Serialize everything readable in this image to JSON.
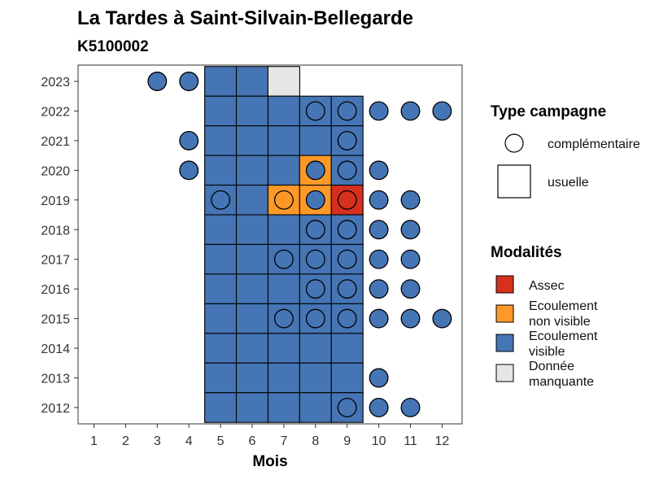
{
  "chart_data": {
    "type": "heatmap",
    "title": "La Tardes à Saint-Silvain-Bellegarde",
    "subtitle": "K5100002",
    "xlabel": "Mois",
    "ylabel": "",
    "x_categories": [
      "1",
      "2",
      "3",
      "4",
      "5",
      "6",
      "7",
      "8",
      "9",
      "10",
      "11",
      "12"
    ],
    "y_categories": [
      "2012",
      "2013",
      "2014",
      "2015",
      "2016",
      "2017",
      "2018",
      "2019",
      "2020",
      "2021",
      "2022",
      "2023"
    ],
    "legend": {
      "campagne_title": "Type campagne",
      "campagne_items": [
        {
          "label": "complémentaire",
          "shape": "circle"
        },
        {
          "label": "usuelle",
          "shape": "square"
        }
      ],
      "modalites_title": "Modalités",
      "modalites_items": [
        {
          "lines": [
            "Assec"
          ],
          "color": "#d7301f"
        },
        {
          "lines": [
            "Ecoulement",
            "non visible"
          ],
          "color": "#fe9929"
        },
        {
          "lines": [
            "Ecoulement",
            "visible"
          ],
          "color": "#4575b4"
        },
        {
          "lines": [
            "Donnée",
            "manquante"
          ],
          "color": "#e6e6e6"
        }
      ]
    },
    "usuelle": [
      {
        "year": "2023",
        "month": 5,
        "modalite": "Ecoulement visible"
      },
      {
        "year": "2023",
        "month": 6,
        "modalite": "Ecoulement visible"
      },
      {
        "year": "2023",
        "month": 7,
        "modalite": "Donnée manquante"
      },
      {
        "year": "2022",
        "month": 5,
        "modalite": "Ecoulement visible"
      },
      {
        "year": "2022",
        "month": 6,
        "modalite": "Ecoulement visible"
      },
      {
        "year": "2022",
        "month": 7,
        "modalite": "Ecoulement visible"
      },
      {
        "year": "2022",
        "month": 8,
        "modalite": "Ecoulement visible"
      },
      {
        "year": "2022",
        "month": 9,
        "modalite": "Ecoulement visible"
      },
      {
        "year": "2021",
        "month": 5,
        "modalite": "Ecoulement visible"
      },
      {
        "year": "2021",
        "month": 6,
        "modalite": "Ecoulement visible"
      },
      {
        "year": "2021",
        "month": 7,
        "modalite": "Ecoulement visible"
      },
      {
        "year": "2021",
        "month": 8,
        "modalite": "Ecoulement visible"
      },
      {
        "year": "2021",
        "month": 9,
        "modalite": "Ecoulement visible"
      },
      {
        "year": "2020",
        "month": 5,
        "modalite": "Ecoulement visible"
      },
      {
        "year": "2020",
        "month": 6,
        "modalite": "Ecoulement visible"
      },
      {
        "year": "2020",
        "month": 7,
        "modalite": "Ecoulement visible"
      },
      {
        "year": "2020",
        "month": 8,
        "modalite": "Ecoulement non visible"
      },
      {
        "year": "2020",
        "month": 9,
        "modalite": "Ecoulement visible"
      },
      {
        "year": "2019",
        "month": 5,
        "modalite": "Ecoulement visible"
      },
      {
        "year": "2019",
        "month": 6,
        "modalite": "Ecoulement visible"
      },
      {
        "year": "2019",
        "month": 7,
        "modalite": "Ecoulement non visible"
      },
      {
        "year": "2019",
        "month": 8,
        "modalite": "Ecoulement non visible"
      },
      {
        "year": "2019",
        "month": 9,
        "modalite": "Assec"
      },
      {
        "year": "2018",
        "month": 5,
        "modalite": "Ecoulement visible"
      },
      {
        "year": "2018",
        "month": 6,
        "modalite": "Ecoulement visible"
      },
      {
        "year": "2018",
        "month": 7,
        "modalite": "Ecoulement visible"
      },
      {
        "year": "2018",
        "month": 8,
        "modalite": "Ecoulement visible"
      },
      {
        "year": "2018",
        "month": 9,
        "modalite": "Ecoulement visible"
      },
      {
        "year": "2017",
        "month": 5,
        "modalite": "Ecoulement visible"
      },
      {
        "year": "2017",
        "month": 6,
        "modalite": "Ecoulement visible"
      },
      {
        "year": "2017",
        "month": 7,
        "modalite": "Ecoulement visible"
      },
      {
        "year": "2017",
        "month": 8,
        "modalite": "Ecoulement visible"
      },
      {
        "year": "2017",
        "month": 9,
        "modalite": "Ecoulement visible"
      },
      {
        "year": "2016",
        "month": 5,
        "modalite": "Ecoulement visible"
      },
      {
        "year": "2016",
        "month": 6,
        "modalite": "Ecoulement visible"
      },
      {
        "year": "2016",
        "month": 7,
        "modalite": "Ecoulement visible"
      },
      {
        "year": "2016",
        "month": 8,
        "modalite": "Ecoulement visible"
      },
      {
        "year": "2016",
        "month": 9,
        "modalite": "Ecoulement visible"
      },
      {
        "year": "2015",
        "month": 5,
        "modalite": "Ecoulement visible"
      },
      {
        "year": "2015",
        "month": 6,
        "modalite": "Ecoulement visible"
      },
      {
        "year": "2015",
        "month": 7,
        "modalite": "Ecoulement visible"
      },
      {
        "year": "2015",
        "month": 8,
        "modalite": "Ecoulement visible"
      },
      {
        "year": "2015",
        "month": 9,
        "modalite": "Ecoulement visible"
      },
      {
        "year": "2014",
        "month": 5,
        "modalite": "Ecoulement visible"
      },
      {
        "year": "2014",
        "month": 6,
        "modalite": "Ecoulement visible"
      },
      {
        "year": "2014",
        "month": 7,
        "modalite": "Ecoulement visible"
      },
      {
        "year": "2014",
        "month": 8,
        "modalite": "Ecoulement visible"
      },
      {
        "year": "2014",
        "month": 9,
        "modalite": "Ecoulement visible"
      },
      {
        "year": "2013",
        "month": 5,
        "modalite": "Ecoulement visible"
      },
      {
        "year": "2013",
        "month": 6,
        "modalite": "Ecoulement visible"
      },
      {
        "year": "2013",
        "month": 7,
        "modalite": "Ecoulement visible"
      },
      {
        "year": "2013",
        "month": 8,
        "modalite": "Ecoulement visible"
      },
      {
        "year": "2013",
        "month": 9,
        "modalite": "Ecoulement visible"
      },
      {
        "year": "2012",
        "month": 5,
        "modalite": "Ecoulement visible"
      },
      {
        "year": "2012",
        "month": 6,
        "modalite": "Ecoulement visible"
      },
      {
        "year": "2012",
        "month": 7,
        "modalite": "Ecoulement visible"
      },
      {
        "year": "2012",
        "month": 8,
        "modalite": "Ecoulement visible"
      },
      {
        "year": "2012",
        "month": 9,
        "modalite": "Ecoulement visible"
      }
    ],
    "complementaire": [
      {
        "year": "2023",
        "month": 3,
        "modalite": "Ecoulement visible"
      },
      {
        "year": "2023",
        "month": 4,
        "modalite": "Ecoulement visible"
      },
      {
        "year": "2022",
        "month": 8,
        "modalite": "Ecoulement visible"
      },
      {
        "year": "2022",
        "month": 9,
        "modalite": "Ecoulement visible"
      },
      {
        "year": "2022",
        "month": 10,
        "modalite": "Ecoulement visible"
      },
      {
        "year": "2022",
        "month": 11,
        "modalite": "Ecoulement visible"
      },
      {
        "year": "2022",
        "month": 12,
        "modalite": "Ecoulement visible"
      },
      {
        "year": "2021",
        "month": 4,
        "modalite": "Ecoulement visible"
      },
      {
        "year": "2021",
        "month": 9,
        "modalite": "Ecoulement visible"
      },
      {
        "year": "2020",
        "month": 4,
        "modalite": "Ecoulement visible"
      },
      {
        "year": "2020",
        "month": 8,
        "modalite": "Ecoulement visible"
      },
      {
        "year": "2020",
        "month": 9,
        "modalite": "Ecoulement visible"
      },
      {
        "year": "2020",
        "month": 10,
        "modalite": "Ecoulement visible"
      },
      {
        "year": "2019",
        "month": 5,
        "modalite": "Ecoulement visible"
      },
      {
        "year": "2019",
        "month": 7,
        "modalite": "Ecoulement non visible"
      },
      {
        "year": "2019",
        "month": 8,
        "modalite": "Ecoulement visible"
      },
      {
        "year": "2019",
        "month": 9,
        "modalite": "Assec"
      },
      {
        "year": "2019",
        "month": 10,
        "modalite": "Ecoulement visible"
      },
      {
        "year": "2019",
        "month": 11,
        "modalite": "Ecoulement visible"
      },
      {
        "year": "2018",
        "month": 8,
        "modalite": "Ecoulement visible"
      },
      {
        "year": "2018",
        "month": 9,
        "modalite": "Ecoulement visible"
      },
      {
        "year": "2018",
        "month": 10,
        "modalite": "Ecoulement visible"
      },
      {
        "year": "2018",
        "month": 11,
        "modalite": "Ecoulement visible"
      },
      {
        "year": "2017",
        "month": 7,
        "modalite": "Ecoulement visible"
      },
      {
        "year": "2017",
        "month": 8,
        "modalite": "Ecoulement visible"
      },
      {
        "year": "2017",
        "month": 9,
        "modalite": "Ecoulement visible"
      },
      {
        "year": "2017",
        "month": 10,
        "modalite": "Ecoulement visible"
      },
      {
        "year": "2017",
        "month": 11,
        "modalite": "Ecoulement visible"
      },
      {
        "year": "2016",
        "month": 8,
        "modalite": "Ecoulement visible"
      },
      {
        "year": "2016",
        "month": 9,
        "modalite": "Ecoulement visible"
      },
      {
        "year": "2016",
        "month": 10,
        "modalite": "Ecoulement visible"
      },
      {
        "year": "2016",
        "month": 11,
        "modalite": "Ecoulement visible"
      },
      {
        "year": "2015",
        "month": 7,
        "modalite": "Ecoulement visible"
      },
      {
        "year": "2015",
        "month": 8,
        "modalite": "Ecoulement visible"
      },
      {
        "year": "2015",
        "month": 9,
        "modalite": "Ecoulement visible"
      },
      {
        "year": "2015",
        "month": 10,
        "modalite": "Ecoulement visible"
      },
      {
        "year": "2015",
        "month": 11,
        "modalite": "Ecoulement visible"
      },
      {
        "year": "2015",
        "month": 12,
        "modalite": "Ecoulement visible"
      },
      {
        "year": "2013",
        "month": 10,
        "modalite": "Ecoulement visible"
      },
      {
        "year": "2012",
        "month": 9,
        "modalite": "Ecoulement visible"
      },
      {
        "year": "2012",
        "month": 10,
        "modalite": "Ecoulement visible"
      },
      {
        "year": "2012",
        "month": 11,
        "modalite": "Ecoulement visible"
      }
    ],
    "colors": {
      "Assec": "#d7301f",
      "Ecoulement non visible": "#fe9929",
      "Ecoulement visible": "#4575b4",
      "Donnée manquante": "#e6e6e6"
    }
  }
}
